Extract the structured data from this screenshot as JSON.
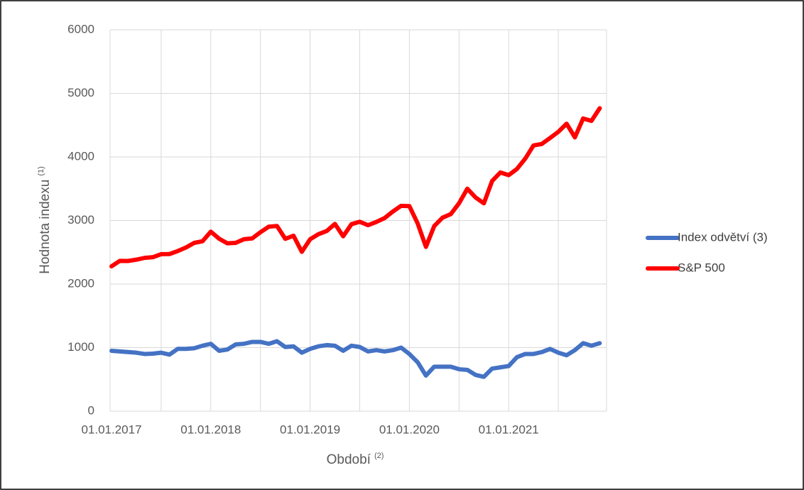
{
  "chart_data": {
    "type": "line",
    "y_label": "Hodnota indexu",
    "y_label_note": "(1)",
    "x_label": "Období",
    "x_label_note": "(2)",
    "categories": [
      "01.01.2017",
      null,
      null,
      null,
      null,
      null,
      null,
      null,
      null,
      null,
      null,
      null,
      "01.01.2018",
      null,
      null,
      null,
      null,
      null,
      null,
      null,
      null,
      null,
      null,
      null,
      "01.01.2019",
      null,
      null,
      null,
      null,
      null,
      null,
      null,
      null,
      null,
      null,
      null,
      "01.01.2020",
      null,
      null,
      null,
      null,
      null,
      null,
      null,
      null,
      null,
      null,
      null,
      "01.01.2021",
      null,
      null,
      null,
      null,
      null,
      null,
      null,
      null,
      null,
      null,
      null
    ],
    "series": [
      {
        "name": "Index odvětví (3)",
        "color": "#4472c4",
        "values": [
          950,
          940,
          930,
          920,
          900,
          905,
          920,
          890,
          980,
          980,
          990,
          1030,
          1060,
          950,
          970,
          1050,
          1060,
          1090,
          1090,
          1060,
          1100,
          1010,
          1020,
          920,
          980,
          1020,
          1040,
          1030,
          950,
          1030,
          1010,
          940,
          960,
          940,
          960,
          1000,
          900,
          770,
          560,
          700,
          700,
          700,
          660,
          650,
          570,
          540,
          670,
          690,
          710,
          850,
          900,
          900,
          930,
          980,
          920,
          880,
          960,
          1070,
          1030,
          1070
        ]
      },
      {
        "name": "S&P 500",
        "color": "#ff0000",
        "values": [
          2279,
          2364,
          2363,
          2384,
          2412,
          2423,
          2470,
          2472,
          2519,
          2575,
          2648,
          2674,
          2824,
          2714,
          2641,
          2648,
          2705,
          2718,
          2816,
          2902,
          2914,
          2712,
          2760,
          2507,
          2704,
          2784,
          2834,
          2946,
          2752,
          2942,
          2980,
          2926,
          2977,
          3038,
          3141,
          3231,
          3226,
          2954,
          2585,
          2912,
          3044,
          3100,
          3271,
          3500,
          3363,
          3270,
          3622,
          3756,
          3714,
          3811,
          3973,
          4181,
          4204,
          4298,
          4395,
          4523,
          4308,
          4605,
          4567,
          4766
        ]
      }
    ],
    "ylim": [
      0,
      6000
    ],
    "yticks": [
      0,
      1000,
      2000,
      3000,
      4000,
      5000,
      6000
    ],
    "grid": true,
    "legend": "right"
  }
}
